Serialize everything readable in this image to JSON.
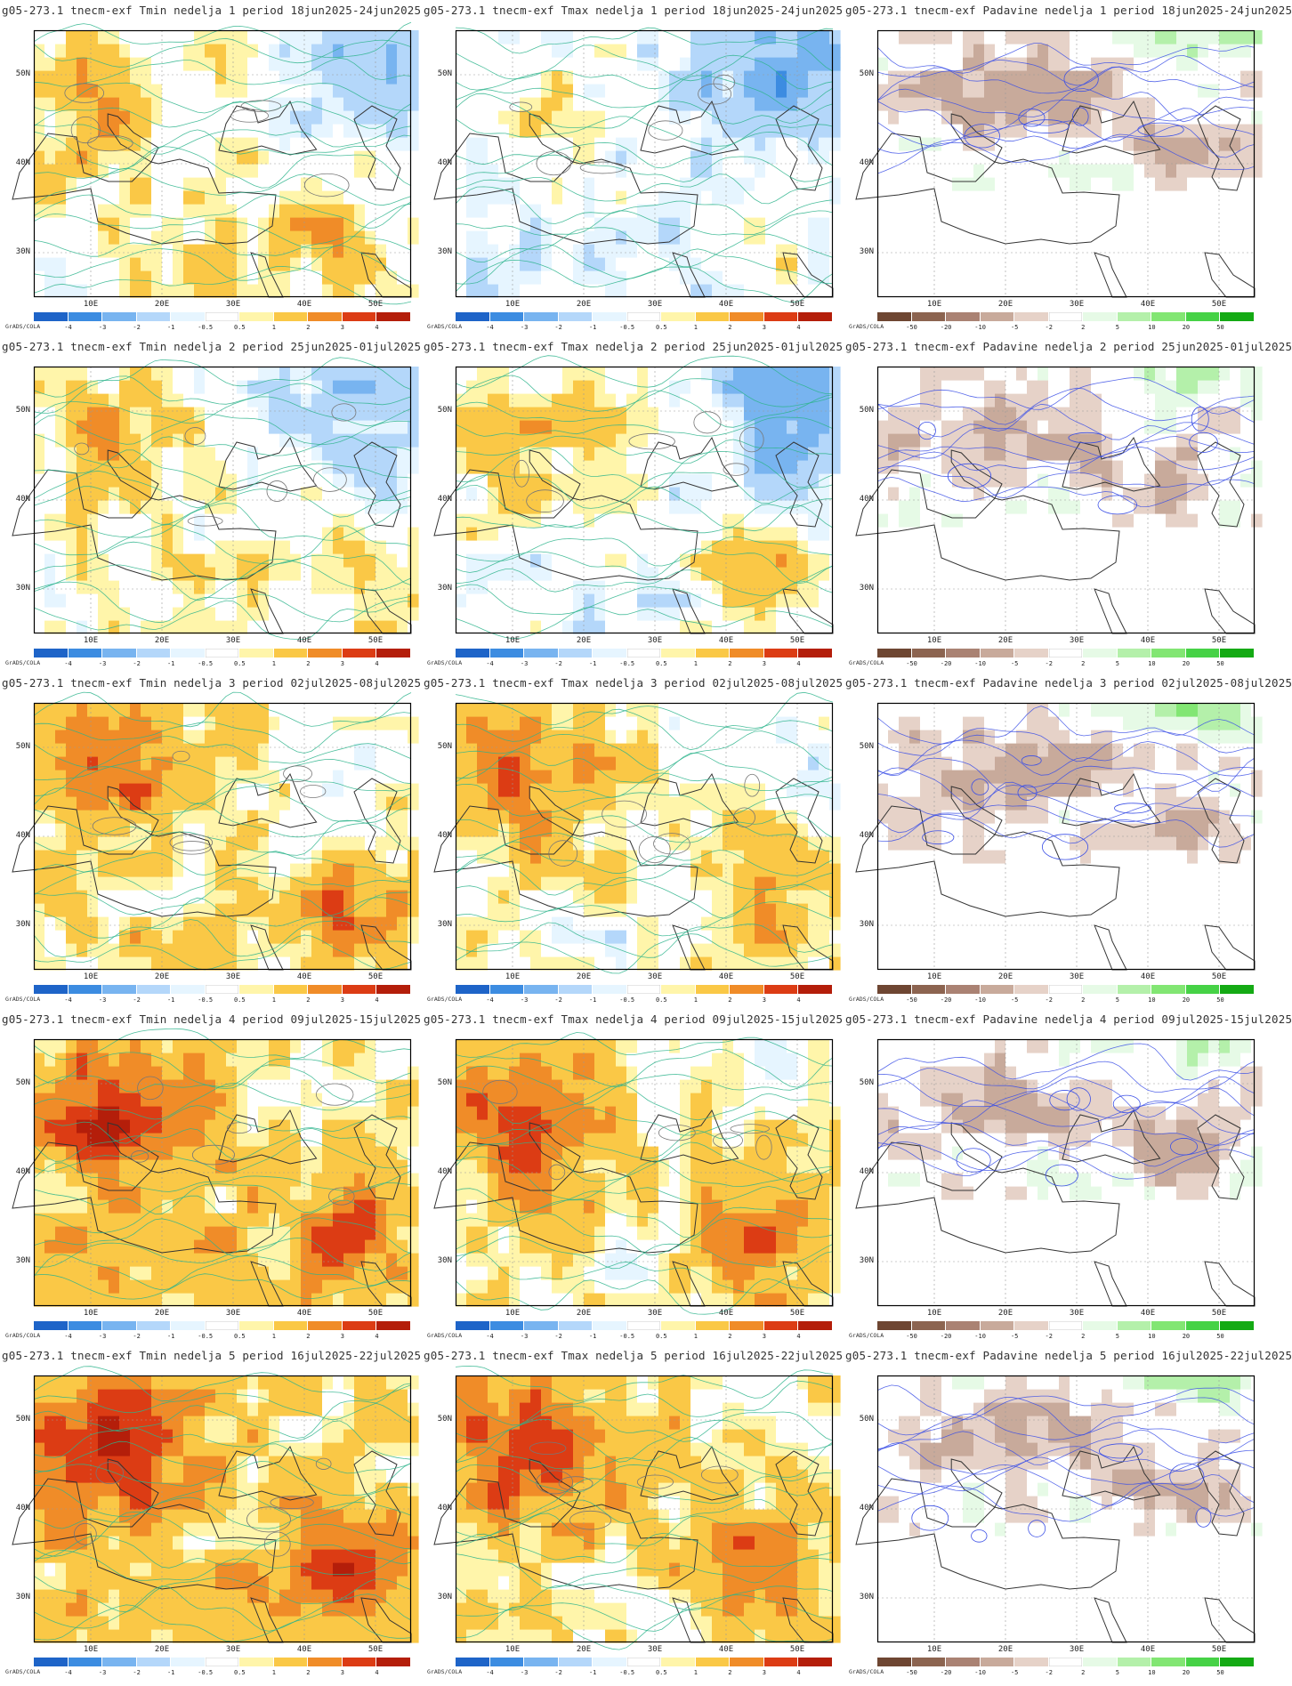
{
  "credit": "GrADS/COLA",
  "lat_labels": [
    "50N",
    "40N",
    "30N"
  ],
  "lon_labels": [
    "10E",
    "20E",
    "30E",
    "40E",
    "50E"
  ],
  "temp_scale": {
    "labels": [
      "-4",
      "-3",
      "-2",
      "-1",
      "-0.5",
      "0.5",
      "1",
      "2",
      "3",
      "4"
    ],
    "colors": [
      "#1e64c8",
      "#3c8ce1",
      "#78b4f0",
      "#b4d7fa",
      "#e6f5ff",
      "#ffffff",
      "#fff5aa",
      "#fac846",
      "#f08c28",
      "#dc3c14",
      "#b41e0a"
    ]
  },
  "precip_scale": {
    "labels": [
      "-50",
      "-20",
      "-10",
      "-5",
      "-2",
      "2",
      "5",
      "10",
      "20",
      "50"
    ],
    "colors": [
      "#6e4632",
      "#8c6450",
      "#aa8273",
      "#c8aa9b",
      "#e6d2c8",
      "#ffffff",
      "#e6fae6",
      "#b4f0aa",
      "#82e673",
      "#46d246",
      "#14aa14"
    ]
  },
  "panels": [
    {
      "title": "g05-273.1 tnecm-exf Tmin nedelja 1 period 18jun2025-24jun2025",
      "kind": "tmin",
      "week": 1,
      "warm": 0.15
    },
    {
      "title": "g05-273.1 tnecm-exf Tmax nedelja 1 period 18jun2025-24jun2025",
      "kind": "tmax",
      "week": 1,
      "warm": -0.15
    },
    {
      "title": "g05-273.1 tnecm-exf Padavine nedelja 1 period 18jun2025-24jun2025",
      "kind": "precip",
      "week": 1,
      "warm": 0
    },
    {
      "title": "g05-273.1 tnecm-exf Tmin nedelja 2 period 25jun2025-01jul2025",
      "kind": "tmin",
      "week": 2,
      "warm": 0.1
    },
    {
      "title": "g05-273.1 tnecm-exf Tmax nedelja 2 period 25jun2025-01jul2025",
      "kind": "tmax",
      "week": 2,
      "warm": 0
    },
    {
      "title": "g05-273.1 tnecm-exf Padavine nedelja 2 period 25jun2025-01jul2025",
      "kind": "precip",
      "week": 2,
      "warm": 0
    },
    {
      "title": "g05-273.1 tnecm-exf Tmin nedelja 3 period 02jul2025-08jul2025",
      "kind": "tmin",
      "week": 3,
      "warm": 0.45
    },
    {
      "title": "g05-273.1 tnecm-exf Tmax nedelja 3 period 02jul2025-08jul2025",
      "kind": "tmax",
      "week": 3,
      "warm": 0.35
    },
    {
      "title": "g05-273.1 tnecm-exf Padavine nedelja 3 period 02jul2025-08jul2025",
      "kind": "precip",
      "week": 3,
      "warm": 0
    },
    {
      "title": "g05-273.1 tnecm-exf Tmin nedelja 4 period 09jul2025-15jul2025",
      "kind": "tmin",
      "week": 4,
      "warm": 0.6
    },
    {
      "title": "g05-273.1 tnecm-exf Tmax nedelja 4 period 09jul2025-15jul2025",
      "kind": "tmax",
      "week": 4,
      "warm": 0.5
    },
    {
      "title": "g05-273.1 tnecm-exf Padavine nedelja 4 period 09jul2025-15jul2025",
      "kind": "precip",
      "week": 4,
      "warm": 0
    },
    {
      "title": "g05-273.1 tnecm-exf Tmin nedelja 5 period 16jul2025-22jul2025",
      "kind": "tmin",
      "week": 5,
      "warm": 0.65
    },
    {
      "title": "g05-273.1 tnecm-exf Tmax nedelja 5 period 16jul2025-22jul2025",
      "kind": "tmax",
      "week": 5,
      "warm": 0.6
    },
    {
      "title": "g05-273.1 tnecm-exf Padavine nedelja 5 period 16jul2025-22jul2025",
      "kind": "precip",
      "week": 5,
      "warm": 0
    }
  ]
}
